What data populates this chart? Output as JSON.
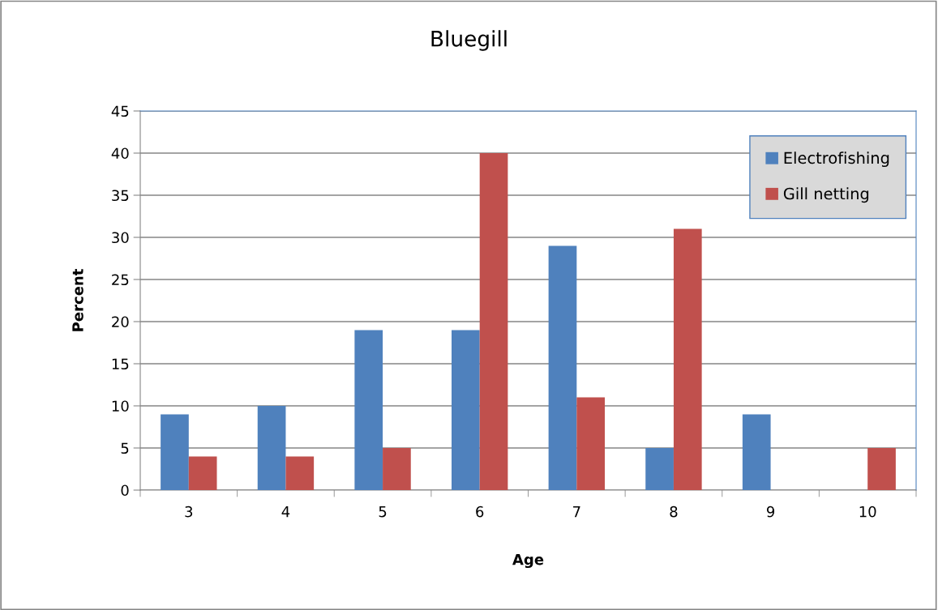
{
  "chart_data": {
    "type": "bar",
    "title": "Bluegill",
    "xlabel": "Age",
    "ylabel": "Percent",
    "categories": [
      "3",
      "4",
      "5",
      "6",
      "7",
      "8",
      "9",
      "10"
    ],
    "series": [
      {
        "name": "Electrofishing",
        "color": "#4f81bd",
        "values": [
          9,
          10,
          19,
          19,
          29,
          5,
          9,
          0
        ]
      },
      {
        "name": "Gill netting",
        "color": "#c0504d",
        "values": [
          4,
          4,
          5,
          40,
          11,
          31,
          0,
          5
        ]
      }
    ],
    "ylim": [
      0,
      45
    ],
    "yticks": [
      0,
      5,
      10,
      15,
      20,
      25,
      30,
      35,
      40,
      45
    ],
    "grid": "y",
    "legend": "top right"
  }
}
